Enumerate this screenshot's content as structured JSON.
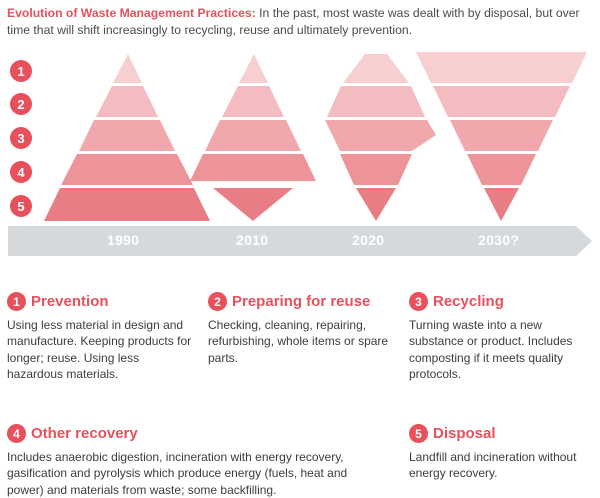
{
  "header": {
    "lead": "Evolution of Waste Management Practices:",
    "text": " In the past, most waste was dealt with by disposal, but over time that will shift increasingly to recycling, reuse and ultimately prevention."
  },
  "levels": [
    "1",
    "2",
    "3",
    "4",
    "5"
  ],
  "timeline": [
    "1990",
    "2010",
    "2020",
    "2030?"
  ],
  "colors": {
    "accent": "#e8505b",
    "band_1": "#f7cfd1",
    "band_2": "#f4bcc0",
    "band_3": "#f1a8ad",
    "band_4": "#ed949a",
    "band_5": "#e97d85",
    "arrow": "#d5d9dc"
  },
  "categories": [
    {
      "num": "1",
      "title": "Prevention",
      "text": "Using less material in design and manufacture. Keeping products for longer; reuse. Using less hazardous materials."
    },
    {
      "num": "2",
      "title": "Preparing for reuse",
      "text": "Checking, cleaning, repairing, refurbishing, whole items or spare parts."
    },
    {
      "num": "3",
      "title": "Recycling",
      "text": "Turning waste into a new substance or product. Includes composting if it meets quality protocols."
    },
    {
      "num": "4",
      "title": "Other recovery",
      "text": "Includes anaerobic digestion, incineration with energy recovery, gasification and pyrolysis which produce energy (fuels, heat and power) and materials from waste; some backfilling."
    },
    {
      "num": "5",
      "title": "Disposal",
      "text": "Landfill and incineration without energy recovery."
    }
  ]
}
